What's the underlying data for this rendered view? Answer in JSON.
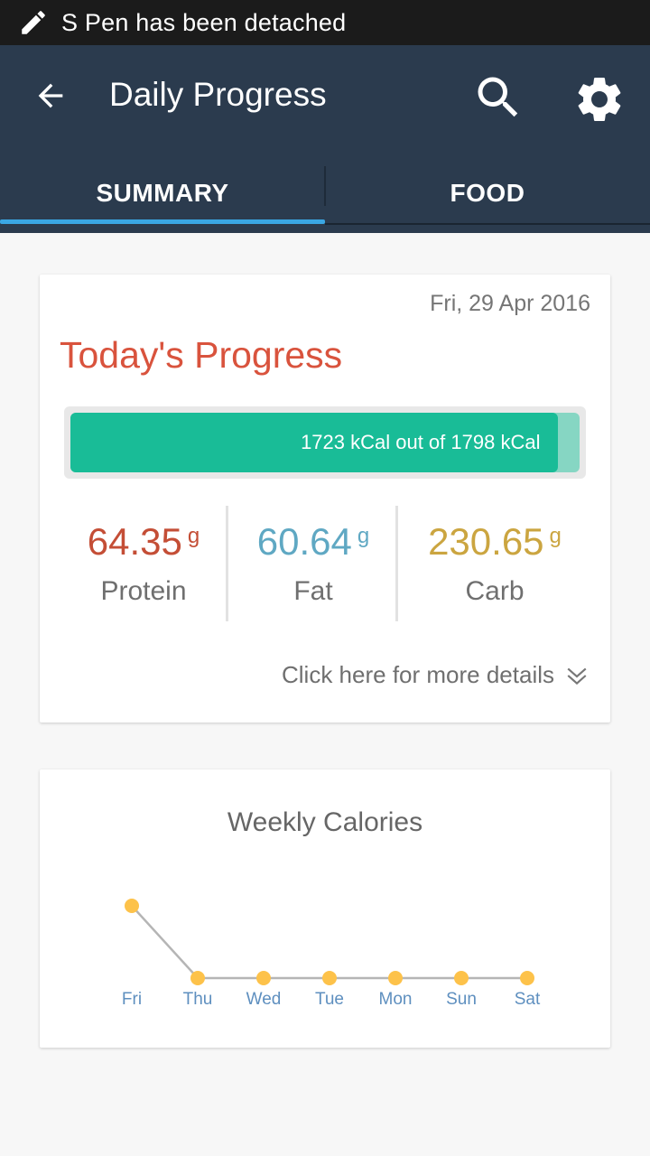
{
  "status_bar": {
    "message": "S Pen has been detached"
  },
  "app_bar": {
    "title": "Daily Progress"
  },
  "tabs": [
    {
      "label": "SUMMARY",
      "selected": true
    },
    {
      "label": "FOOD",
      "selected": false
    }
  ],
  "progress_card": {
    "date": "Fri, 29 Apr 2016",
    "title": "Today's Progress",
    "calories": {
      "consumed": 1723,
      "goal": 1798,
      "text": "1723 kCal out of 1798 kCal"
    },
    "macros": [
      {
        "value": "64.35",
        "unit": "g",
        "label": "Protein",
        "color": "#c44e36"
      },
      {
        "value": "60.64",
        "unit": "g",
        "label": "Fat",
        "color": "#5fa8c3"
      },
      {
        "value": "230.65",
        "unit": "g",
        "label": "Carb",
        "color": "#cba540"
      }
    ],
    "details_link": "Click here for more details"
  },
  "weekly_card": {
    "title": "Weekly Calories"
  },
  "chart_data": {
    "type": "line",
    "categories": [
      "Fri",
      "Thu",
      "Wed",
      "Tue",
      "Mon",
      "Sun",
      "Sat"
    ],
    "values": [
      1723,
      0,
      0,
      0,
      0,
      0,
      0
    ],
    "ylim": [
      0,
      1723
    ],
    "grid": false,
    "point_color": "#fdc24a",
    "line_color": "#b5b5b5",
    "label_color": "#5e8fbf"
  },
  "colors": {
    "app_bar": "#2b3b4e",
    "tab_indicator": "#3aa7e4",
    "progress_fill": "#19bc97",
    "progress_track": "#86d6c3",
    "title_accent": "#d9533d"
  }
}
